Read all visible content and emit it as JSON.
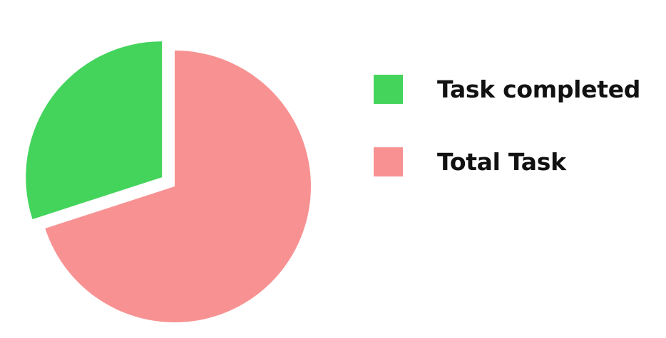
{
  "chart_data": {
    "type": "pie",
    "title": "",
    "legend_position": "right",
    "slices": [
      {
        "label": "Task completed",
        "value": 30,
        "color": "#44d45c",
        "exploded": true
      },
      {
        "label": "Total Task",
        "value": 70,
        "color": "#f89292",
        "exploded": false
      }
    ]
  }
}
